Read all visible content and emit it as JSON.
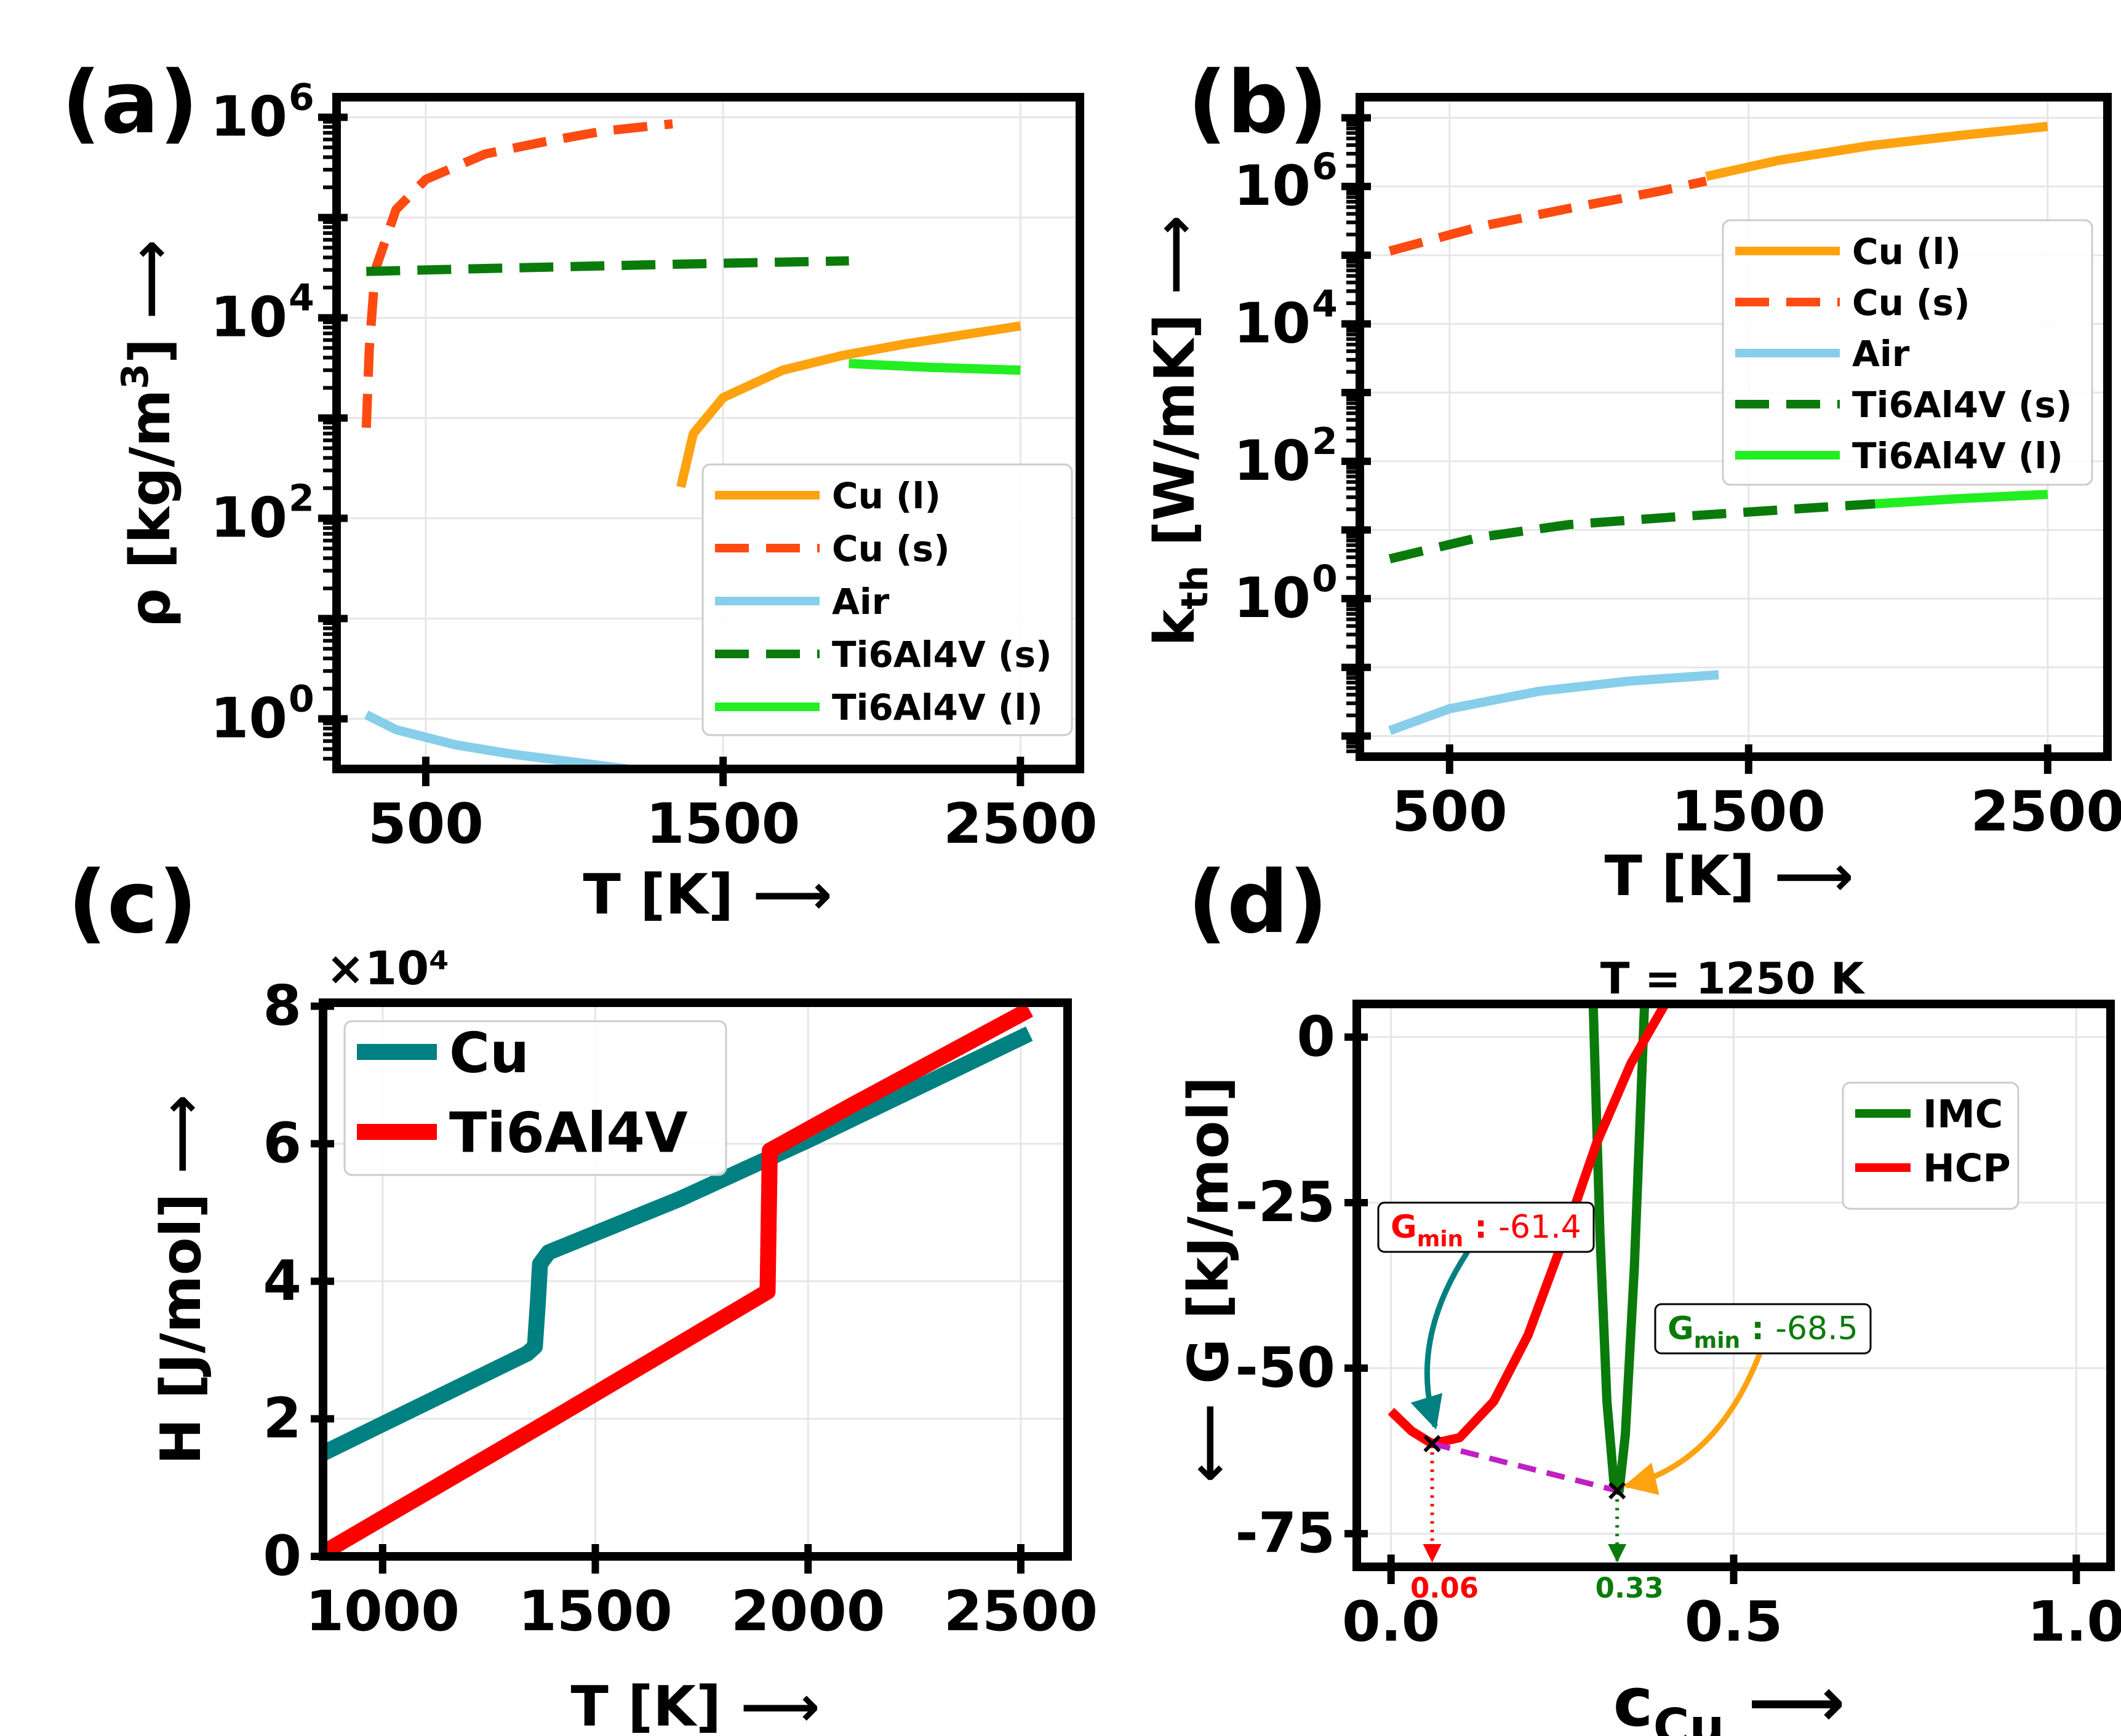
{
  "chart_data": [
    {
      "panel": "(a)",
      "type": "line",
      "xlabel": "T [K]",
      "ylabel": "ρ [kg/m3]",
      "yscale": "log",
      "xlim": [
        200,
        2700
      ],
      "ylim_log10": [
        -0.5,
        6.2
      ],
      "xticks": [
        500,
        1500,
        2500
      ],
      "yticks_exp": [
        0,
        2,
        4,
        6
      ],
      "grid": true,
      "legend_position": "lower right",
      "series": [
        {
          "name": "Cu (l)",
          "color": "#ffa20f",
          "dash": false,
          "points": [
            [
              1358,
              205
            ],
            [
              1400,
              700
            ],
            [
              1500,
              1600
            ],
            [
              1700,
              3000
            ],
            [
              1900,
              4200
            ],
            [
              2100,
              5400
            ],
            [
              2300,
              6700
            ],
            [
              2500,
              8300
            ]
          ]
        },
        {
          "name": "Cu (s)",
          "color": "#ff4a11",
          "dash": true,
          "points": [
            [
              300,
              800
            ],
            [
              310,
              5000
            ],
            [
              330,
              30000
            ],
            [
              400,
              120000
            ],
            [
              500,
              240000
            ],
            [
              700,
              430000
            ],
            [
              900,
              570000
            ],
            [
              1100,
              730000
            ],
            [
              1330,
              860000
            ]
          ]
        },
        {
          "name": "Air",
          "color": "#87ceeb",
          "dash": false,
          "points": [
            [
              300,
              1.1
            ],
            [
              400,
              0.78
            ],
            [
              600,
              0.55
            ],
            [
              800,
              0.44
            ],
            [
              1000,
              0.37
            ],
            [
              1200,
              0.31
            ],
            [
              1400,
              0.26
            ],
            [
              1420,
              0.23
            ]
          ]
        },
        {
          "name": "Ti6Al4V (s)",
          "color": "#0a7a0a",
          "dash": true,
          "points": [
            [
              300,
              29000
            ],
            [
              700,
              31000
            ],
            [
              1100,
              33000
            ],
            [
              1500,
              35000
            ],
            [
              1923,
              37000
            ]
          ]
        },
        {
          "name": "Ti6Al4V (l)",
          "color": "#22ee22",
          "dash": false,
          "points": [
            [
              1923,
              3500
            ],
            [
              2200,
              3200
            ],
            [
              2500,
              3000
            ]
          ]
        }
      ]
    },
    {
      "panel": "(b)",
      "type": "line",
      "xlabel": "T [K]",
      "ylabel": "kth [W/mK]",
      "yscale": "log",
      "xlim": [
        200,
        2700
      ],
      "ylim_log10": [
        -2.3,
        7.3
      ],
      "xticks": [
        500,
        1500,
        2500
      ],
      "yticks_exp": [
        0,
        2,
        4,
        6
      ],
      "grid": true,
      "legend_position": "upper right",
      "series": [
        {
          "name": "Cu (l)",
          "color": "#ffa20f",
          "dash": false,
          "points": [
            [
              1358,
              1400000
            ],
            [
              1600,
              2400000
            ],
            [
              1900,
              3900000
            ],
            [
              2200,
              5500000
            ],
            [
              2500,
              7500000
            ]
          ]
        },
        {
          "name": "Cu (s)",
          "color": "#ff4a11",
          "dash": true,
          "points": [
            [
              300,
              115000
            ],
            [
              600,
              260000
            ],
            [
              900,
              480000
            ],
            [
              1200,
              850000
            ],
            [
              1358,
              1200000
            ]
          ]
        },
        {
          "name": "Air",
          "color": "#87ceeb",
          "dash": false,
          "points": [
            [
              300,
              0.012
            ],
            [
              500,
              0.025
            ],
            [
              800,
              0.045
            ],
            [
              1100,
              0.063
            ],
            [
              1400,
              0.078
            ]
          ]
        },
        {
          "name": "Ti6Al4V (s)",
          "color": "#0a7a0a",
          "dash": true,
          "points": [
            [
              300,
              3.8
            ],
            [
              600,
              7.8
            ],
            [
              900,
              12
            ],
            [
              1300,
              16
            ],
            [
              1600,
              19.5
            ],
            [
              1923,
              24
            ]
          ]
        },
        {
          "name": "Ti6Al4V (l)",
          "color": "#22ee22",
          "dash": false,
          "points": [
            [
              1923,
              24
            ],
            [
              2200,
              28.5
            ],
            [
              2500,
              33
            ]
          ]
        }
      ]
    },
    {
      "panel": "(c)",
      "type": "line",
      "xlabel": "T [K]",
      "ylabel": "H [J/mol]",
      "multiplier": "×10⁴",
      "xlim": [
        860,
        2610
      ],
      "ylim": [
        0,
        8.05
      ],
      "xticks": [
        1000,
        1500,
        2000,
        2500
      ],
      "yticks": [
        0,
        2,
        4,
        6,
        8
      ],
      "grid": true,
      "legend_position": "upper left",
      "series": [
        {
          "name": "Cu",
          "color": "#008080",
          "points": [
            [
              860,
              1.5
            ],
            [
              1340,
              2.95
            ],
            [
              1358,
              3.05
            ],
            [
              1365,
              3.7
            ],
            [
              1370,
              4.25
            ],
            [
              1390,
              4.42
            ],
            [
              1700,
              5.2
            ],
            [
              2000,
              6.05
            ],
            [
              2520,
              7.6
            ]
          ]
        },
        {
          "name": "Ti6Al4V",
          "color": "#ff0000",
          "points": [
            [
              860,
              0.05
            ],
            [
              1400,
              2.0
            ],
            [
              1905,
              3.85
            ],
            [
              1910,
              5.9
            ],
            [
              2100,
              6.55
            ],
            [
              2520,
              7.95
            ]
          ]
        }
      ]
    },
    {
      "panel": "(d)",
      "type": "line",
      "title": "T = 1250 K",
      "xlabel": "cCu",
      "ylabel": "G [kJ/mol]",
      "xlim": [
        -0.05,
        1.05
      ],
      "ylim": [
        -80,
        5
      ],
      "xticks": [
        0.0,
        0.5,
        1.0
      ],
      "xtick_labels": [
        "0.0",
        "0.5",
        "1.0"
      ],
      "yticks": [
        0,
        -25,
        -50,
        -75
      ],
      "grid": true,
      "legend_position": "upper right",
      "series": [
        {
          "name": "IMC",
          "color": "#0a7a0a",
          "points": [
            [
              0.295,
              5
            ],
            [
              0.305,
              -30
            ],
            [
              0.315,
              -55
            ],
            [
              0.325,
              -67
            ],
            [
              0.333,
              -68.5
            ],
            [
              0.342,
              -60
            ],
            [
              0.355,
              -35
            ],
            [
              0.37,
              5
            ]
          ]
        },
        {
          "name": "HCP",
          "color": "#ff0000",
          "points": [
            [
              0.0,
              -56.5
            ],
            [
              0.03,
              -59.5
            ],
            [
              0.06,
              -61.4
            ],
            [
              0.1,
              -60.5
            ],
            [
              0.15,
              -55
            ],
            [
              0.2,
              -45
            ],
            [
              0.25,
              -31
            ],
            [
              0.3,
              -16
            ],
            [
              0.35,
              -4
            ],
            [
              0.4,
              5
            ]
          ]
        }
      ],
      "annotations": [
        {
          "label": "Gmin :",
          "value": "-61.4",
          "x": 0.06,
          "y": -61.4,
          "color": "#ff0000"
        },
        {
          "label": "Gmin :",
          "value": "-68.5",
          "x": 0.33,
          "y": -68.5,
          "color": "#0a7a0a"
        }
      ],
      "vertical_markers": [
        {
          "x": 0.06,
          "label": "0.06",
          "color": "#ff0000"
        },
        {
          "x": 0.33,
          "label": "0.33",
          "color": "#0a7a0a"
        }
      ],
      "tie_line": {
        "from": [
          0.06,
          -61.4
        ],
        "to": [
          0.33,
          -68.5
        ],
        "color": "#c020c0"
      }
    }
  ],
  "panel_labels": [
    "(a)",
    "(b)",
    "(c)",
    "(d)"
  ]
}
